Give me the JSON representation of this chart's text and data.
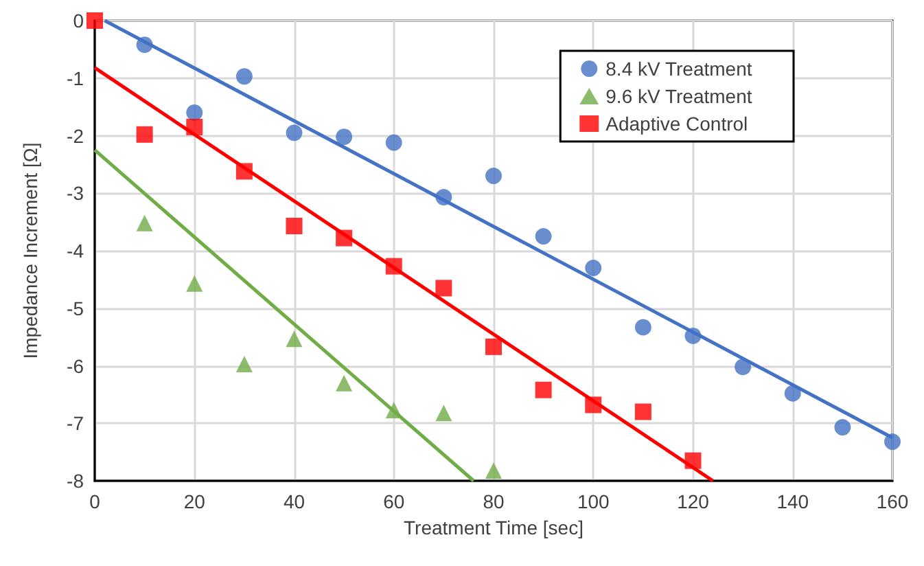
{
  "chart_data": {
    "type": "scatter",
    "xlabel": "Treatment Time [sec]",
    "ylabel": "Impedance Increment [Ω]",
    "xlim": [
      0,
      160
    ],
    "xticks": [
      0,
      20,
      40,
      60,
      80,
      100,
      120,
      140,
      160
    ],
    "ylim": [
      -8,
      0
    ],
    "yticks": [
      -8,
      -7,
      -6,
      -5,
      -4,
      -3,
      -2,
      -1,
      0
    ],
    "grid": true,
    "legend": "top right",
    "series": [
      {
        "name": "8.4 kV Treatment",
        "color": "#4472c4",
        "marker": "circle",
        "x": [
          10,
          20,
          30,
          40,
          50,
          60,
          70,
          80,
          90,
          100,
          110,
          120,
          130,
          140,
          150,
          160
        ],
        "values": [
          -0.42,
          -1.6,
          -0.97,
          -1.95,
          -2.02,
          -2.12,
          -3.07,
          -2.7,
          -3.75,
          -4.3,
          -5.33,
          -5.48,
          -6.02,
          -6.48,
          -7.07,
          -7.32
        ]
      },
      {
        "name": "9.6 kV Treatment",
        "color": "#70ad47",
        "marker": "triangle",
        "x": [
          10,
          20,
          30,
          40,
          50,
          60,
          70,
          80
        ],
        "values": [
          -3.52,
          -4.57,
          -5.97,
          -5.53,
          -6.3,
          -6.77,
          -6.82,
          -7.82
        ]
      },
      {
        "name": "Adaptive Control",
        "color": "#ff0000",
        "marker": "square",
        "x": [
          0,
          10,
          20,
          30,
          40,
          50,
          60,
          70,
          80,
          90,
          100,
          110,
          120
        ],
        "values": [
          0,
          -1.98,
          -1.85,
          -2.62,
          -3.57,
          -3.78,
          -4.27,
          -4.65,
          -5.67,
          -6.42,
          -6.68,
          -6.8,
          -7.65
        ]
      },
      {
        "type": "line",
        "color": "#4472c4",
        "line_style": "solid",
        "x": [
          2,
          160
        ],
        "values": [
          0,
          -7.25
        ]
      },
      {
        "type": "line",
        "color": "#70ad47",
        "line_style": "solid",
        "x": [
          0,
          76
        ],
        "values": [
          -2.25,
          -8
        ]
      },
      {
        "type": "line",
        "color": "#ff0000",
        "line_style": "solid",
        "x": [
          0,
          124
        ],
        "values": [
          -0.82,
          -8
        ]
      }
    ]
  }
}
